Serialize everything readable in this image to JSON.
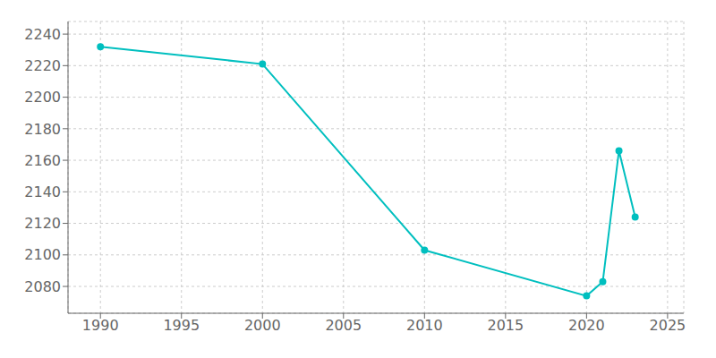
{
  "chart_data": {
    "type": "line",
    "x": [
      1990,
      2000,
      2010,
      2020,
      2021,
      2022,
      2023
    ],
    "values": [
      2232,
      2221,
      2103,
      2074,
      2083,
      2166,
      2124
    ],
    "color": "#00BFBF",
    "marker": "circle",
    "xlim": [
      1988,
      2026
    ],
    "ylim": [
      2063,
      2248
    ],
    "xticks": [
      1990,
      1995,
      2000,
      2005,
      2010,
      2015,
      2020,
      2025
    ],
    "yticks": [
      2080,
      2100,
      2120,
      2140,
      2160,
      2180,
      2200,
      2220,
      2240
    ],
    "grid": true
  }
}
